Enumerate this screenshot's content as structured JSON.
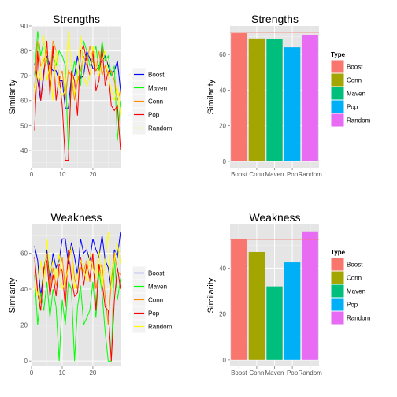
{
  "colors": {
    "panel_bg": "#E5E5E5",
    "grid_major": "#FFFFFF",
    "grid_minor": "#F2F2F2",
    "legend_key_bg": "#F2F2F2",
    "ref_line": "#F8766D"
  },
  "chart_data": [
    {
      "type": "line",
      "title": "Strengths",
      "ylabel": "Similarity",
      "xlabel": "",
      "xlim": [
        0,
        29
      ],
      "ylim": [
        33,
        90
      ],
      "xticks": [
        0,
        10,
        20
      ],
      "yticks": [
        40,
        50,
        60,
        70,
        80,
        90
      ],
      "grid": true,
      "legend_position": "right",
      "series": [
        {
          "name": "Boost",
          "color": "#0000FF",
          "values": [
            75,
            68,
            60,
            72,
            78,
            74,
            72,
            72,
            68,
            68,
            57,
            57,
            70,
            70,
            78,
            69,
            70,
            80,
            77,
            73,
            72,
            74,
            76,
            78,
            74,
            70,
            72,
            76,
            64
          ]
        },
        {
          "name": "Maven",
          "color": "#00FF00",
          "values": [
            70,
            88,
            78,
            84,
            76,
            72,
            78,
            74,
            80,
            78,
            74,
            40,
            68,
            76,
            70,
            66,
            84,
            80,
            74,
            76,
            82,
            72,
            84,
            76,
            78,
            70,
            74,
            44,
            60
          ]
        },
        {
          "name": "Conn",
          "color": "#FF8C00",
          "values": [
            65,
            84,
            74,
            76,
            80,
            70,
            84,
            80,
            68,
            72,
            60,
            72,
            70,
            60,
            68,
            72,
            78,
            74,
            82,
            76,
            72,
            80,
            70,
            74,
            70,
            72,
            68,
            60,
            64
          ]
        },
        {
          "name": "Pop",
          "color": "#FF0000",
          "values": [
            48,
            80,
            60,
            70,
            84,
            62,
            82,
            60,
            70,
            58,
            36,
            36,
            72,
            68,
            54,
            80,
            82,
            76,
            70,
            80,
            64,
            68,
            82,
            66,
            72,
            58,
            56,
            58,
            40
          ]
        },
        {
          "name": "Random",
          "color": "#FFFF00",
          "values": [
            60,
            72,
            68,
            86,
            68,
            74,
            60,
            80,
            66,
            62,
            64,
            88,
            74,
            62,
            70,
            86,
            70,
            66,
            70,
            82,
            74,
            70,
            76,
            80,
            70,
            64,
            60,
            66,
            54
          ]
        }
      ]
    },
    {
      "type": "bar",
      "title": "Strengths",
      "ylabel": "Similarity",
      "xlabel": "",
      "legend_title": "Type",
      "legend_position": "right",
      "categories": [
        "Boost",
        "Conn",
        "Maven",
        "Pop",
        "Random"
      ],
      "values": [
        72,
        69,
        68.5,
        64,
        71
      ],
      "colors": [
        "#F8766D",
        "#A3A500",
        "#00BF7D",
        "#00B0F6",
        "#E76BF3"
      ],
      "reference_line": 72.5,
      "ylim": [
        -3.6,
        76
      ],
      "yticks": [
        0,
        20,
        40,
        60
      ],
      "grid": true
    },
    {
      "type": "line",
      "title": "Weakness",
      "ylabel": "Similarity",
      "xlabel": "",
      "xlim": [
        0,
        29
      ],
      "ylim": [
        -3,
        76
      ],
      "xticks": [
        0,
        10,
        20
      ],
      "yticks": [
        0,
        20,
        40,
        60
      ],
      "grid": true,
      "legend_position": "right",
      "series": [
        {
          "name": "Boost",
          "color": "#0000FF",
          "values": [
            64,
            56,
            36,
            50,
            62,
            44,
            60,
            52,
            56,
            68,
            68,
            54,
            66,
            58,
            48,
            68,
            60,
            62,
            56,
            68,
            62,
            58,
            70,
            56,
            52,
            40,
            62,
            58,
            72
          ]
        },
        {
          "name": "Maven",
          "color": "#00FF00",
          "values": [
            48,
            20,
            38,
            28,
            44,
            24,
            40,
            30,
            0,
            34,
            20,
            44,
            40,
            0,
            30,
            42,
            20,
            24,
            28,
            44,
            24,
            50,
            38,
            16,
            0,
            0,
            58,
            34,
            46
          ]
        },
        {
          "name": "Conn",
          "color": "#FF8C00",
          "values": [
            56,
            40,
            32,
            44,
            60,
            40,
            52,
            42,
            48,
            58,
            40,
            60,
            62,
            46,
            40,
            52,
            50,
            56,
            44,
            58,
            40,
            50,
            54,
            36,
            20,
            44,
            60,
            50,
            48
          ]
        },
        {
          "name": "Pop",
          "color": "#FF0000",
          "values": [
            58,
            38,
            28,
            52,
            56,
            36,
            48,
            36,
            54,
            50,
            30,
            62,
            46,
            36,
            38,
            58,
            42,
            54,
            46,
            60,
            28,
            54,
            44,
            30,
            28,
            0,
            34,
            52,
            40
          ]
        },
        {
          "name": "Random",
          "color": "#FFFF00",
          "values": [
            44,
            36,
            56,
            42,
            68,
            48,
            56,
            46,
            60,
            40,
            44,
            52,
            64,
            40,
            48,
            56,
            52,
            44,
            60,
            52,
            46,
            62,
            40,
            56,
            72,
            40,
            56,
            66,
            54
          ]
        }
      ]
    },
    {
      "type": "bar",
      "title": "Weakness",
      "ylabel": "Similarity",
      "xlabel": "",
      "legend_title": "Type",
      "legend_position": "right",
      "categories": [
        "Boost",
        "Conn",
        "Maven",
        "Pop",
        "Random"
      ],
      "values": [
        52.5,
        47,
        32,
        42.5,
        56
      ],
      "colors": [
        "#F8766D",
        "#A3A500",
        "#00BF7D",
        "#00B0F6",
        "#E76BF3"
      ],
      "reference_line": 52.5,
      "ylim": [
        -2.8,
        59
      ],
      "yticks": [
        0,
        20,
        40
      ],
      "grid": true
    }
  ]
}
